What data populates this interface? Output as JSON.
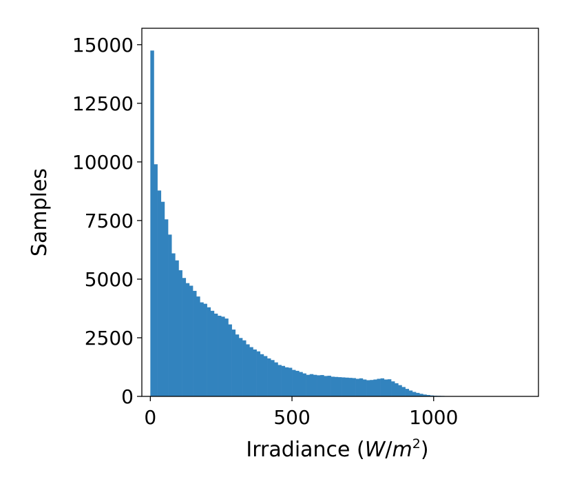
{
  "chart_data": {
    "type": "bar",
    "title": "",
    "xlabel": "Irradiance (W/m²)",
    "xlabel_main": "Irradiance (",
    "xlabel_unit_w": "W",
    "xlabel_unit_slash": "/",
    "xlabel_unit_m": "m",
    "xlabel_unit_exp": "2",
    "xlabel_close": ")",
    "ylabel": "Samples",
    "xlim": [
      -30,
      1370
    ],
    "ylim": [
      0,
      15700
    ],
    "xticks": [
      0,
      500,
      1000
    ],
    "xtick_labels": [
      "0",
      "500",
      "1000"
    ],
    "yticks": [
      0,
      2500,
      5000,
      7500,
      10000,
      12500,
      15000
    ],
    "ytick_labels": [
      "0",
      "2500",
      "5000",
      "7500",
      "10000",
      "12500",
      "15000"
    ],
    "bin_start": 0,
    "bin_width": 12.5,
    "values": [
      14750,
      9900,
      8780,
      8300,
      7550,
      6900,
      6100,
      5800,
      5380,
      5050,
      4830,
      4720,
      4500,
      4260,
      4010,
      3950,
      3800,
      3650,
      3530,
      3440,
      3400,
      3320,
      3070,
      2850,
      2640,
      2490,
      2390,
      2220,
      2100,
      2000,
      1920,
      1800,
      1720,
      1620,
      1550,
      1450,
      1340,
      1300,
      1240,
      1220,
      1130,
      1090,
      1040,
      980,
      920,
      950,
      920,
      900,
      910,
      870,
      880,
      840,
      830,
      820,
      810,
      800,
      790,
      780,
      750,
      770,
      720,
      690,
      700,
      720,
      750,
      770,
      720,
      730,
      640,
      560,
      480,
      400,
      320,
      250,
      190,
      150,
      110,
      80,
      60,
      40,
      30,
      25,
      20,
      12,
      8,
      5,
      4,
      3,
      2,
      2,
      1,
      1,
      1,
      1,
      1,
      1,
      1,
      1,
      1,
      1,
      1,
      1,
      1
    ],
    "bar_color": "#3283be",
    "grid": false,
    "legend": false
  }
}
